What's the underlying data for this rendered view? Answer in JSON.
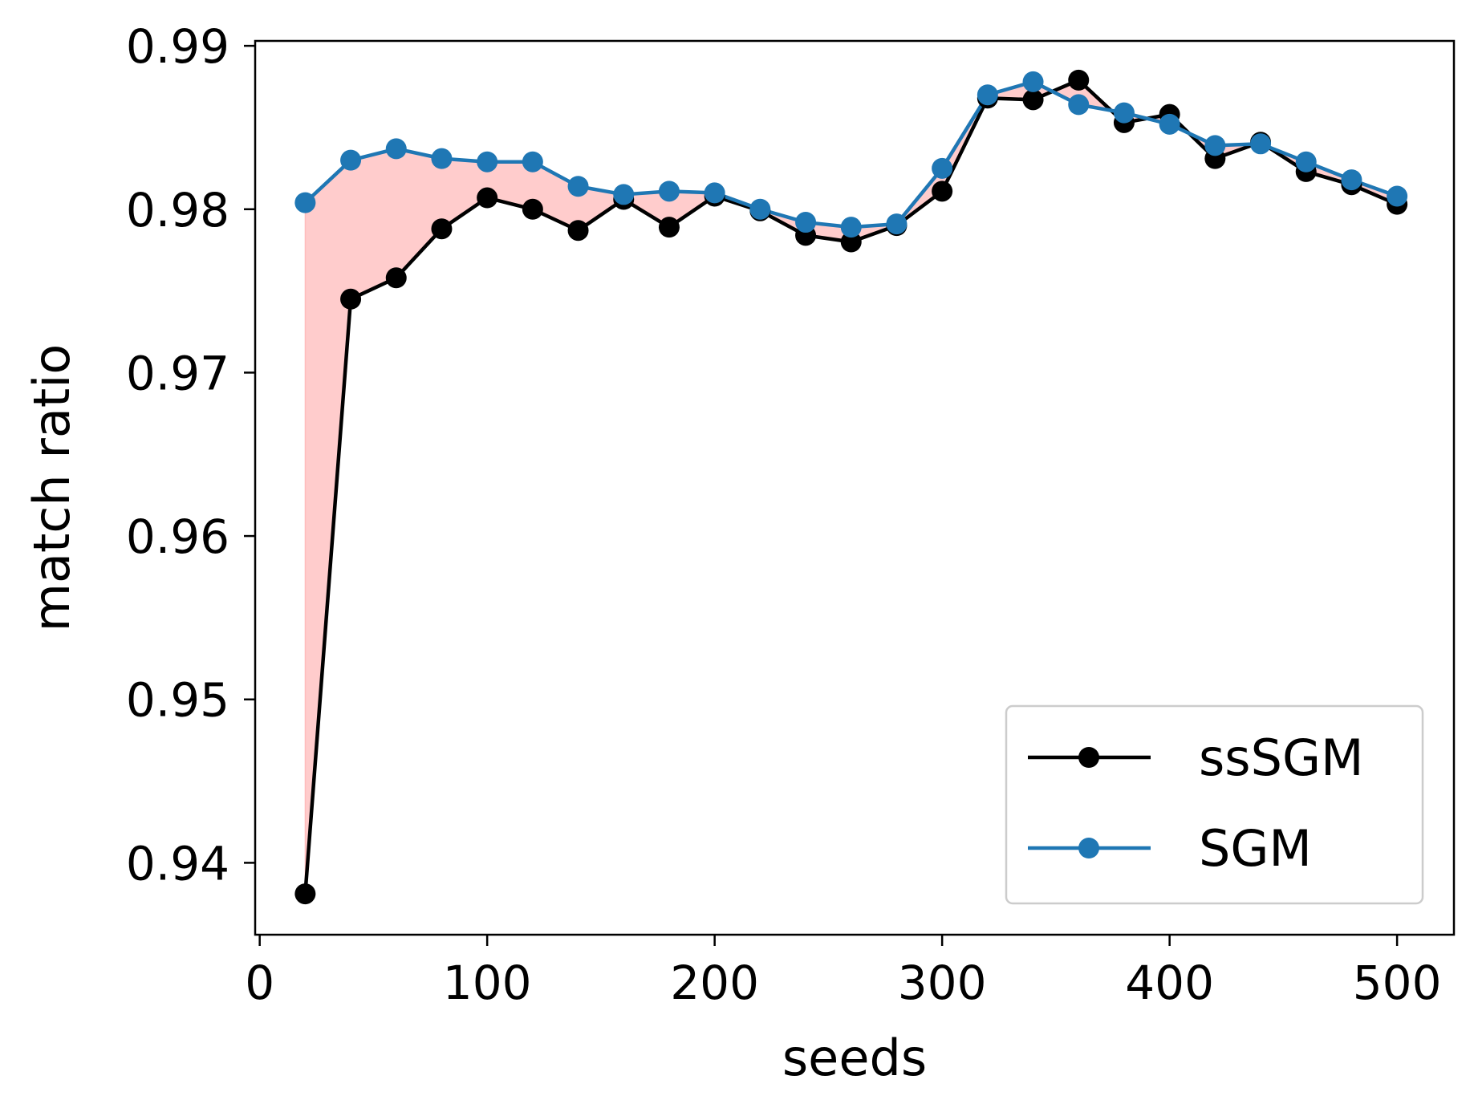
{
  "chart_data": {
    "type": "line",
    "title": "",
    "xlabel": "seeds",
    "ylabel": "match ratio",
    "xlim": [
      -2,
      525
    ],
    "ylim": [
      0.9356,
      0.9903
    ],
    "xticks": [
      0,
      100,
      200,
      300,
      400,
      500
    ],
    "yticks": [
      0.94,
      0.95,
      0.96,
      0.97,
      0.98,
      0.99
    ],
    "xtick_labels": [
      "0",
      "100",
      "200",
      "300",
      "400",
      "500"
    ],
    "ytick_labels": [
      "0.94",
      "0.95",
      "0.96",
      "0.97",
      "0.98",
      "0.99"
    ],
    "grid": false,
    "legend_position": "lower-right",
    "x": [
      20,
      40,
      60,
      80,
      100,
      120,
      140,
      160,
      180,
      200,
      220,
      240,
      260,
      280,
      300,
      320,
      340,
      360,
      380,
      400,
      420,
      440,
      460,
      480,
      500
    ],
    "series": [
      {
        "name": "ssSGM",
        "color": "#000000",
        "values": [
          0.9381,
          0.9745,
          0.9758,
          0.9788,
          0.9807,
          0.98,
          0.9787,
          0.9806,
          0.9789,
          0.9808,
          0.9799,
          0.9784,
          0.978,
          0.979,
          0.9811,
          0.9868,
          0.9867,
          0.9879,
          0.9853,
          0.9858,
          0.9831,
          0.9841,
          0.9823,
          0.9815,
          0.9803
        ]
      },
      {
        "name": "SGM",
        "color": "#1f77b4",
        "values": [
          0.9804,
          0.983,
          0.9837,
          0.9831,
          0.9829,
          0.9829,
          0.9814,
          0.9809,
          0.9811,
          0.981,
          0.98,
          0.9792,
          0.9789,
          0.9791,
          0.9825,
          0.987,
          0.9878,
          0.9864,
          0.9859,
          0.9852,
          0.9839,
          0.984,
          0.9829,
          0.9818,
          0.9808
        ]
      }
    ],
    "fill_between": {
      "between": [
        "ssSGM",
        "SGM"
      ],
      "color": "#ff9999",
      "opacity": 0.5
    }
  }
}
